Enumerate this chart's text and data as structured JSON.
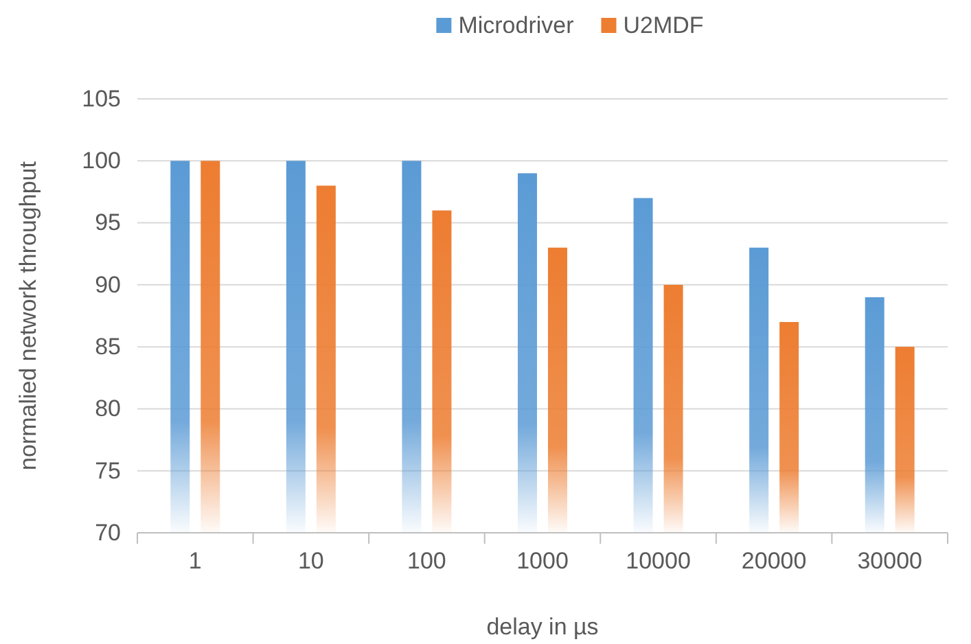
{
  "chart_data": {
    "type": "bar",
    "xlabel": "delay in µs",
    "ylabel": "normalied network throughput",
    "categories": [
      "1",
      "10",
      "100",
      "1000",
      "10000",
      "20000",
      "30000"
    ],
    "series": [
      {
        "name": "Microdriver",
        "color": "#5b9bd5",
        "values": [
          100,
          100,
          100,
          99,
          97,
          93,
          89
        ]
      },
      {
        "name": "U2MDF",
        "color": "#ed7d31",
        "values": [
          100,
          98,
          96,
          93,
          90,
          87,
          85
        ]
      }
    ],
    "ylim": [
      70,
      105
    ],
    "yticks": [
      70,
      75,
      80,
      85,
      90,
      95,
      100,
      105
    ],
    "grid": "y",
    "legend": "top"
  }
}
